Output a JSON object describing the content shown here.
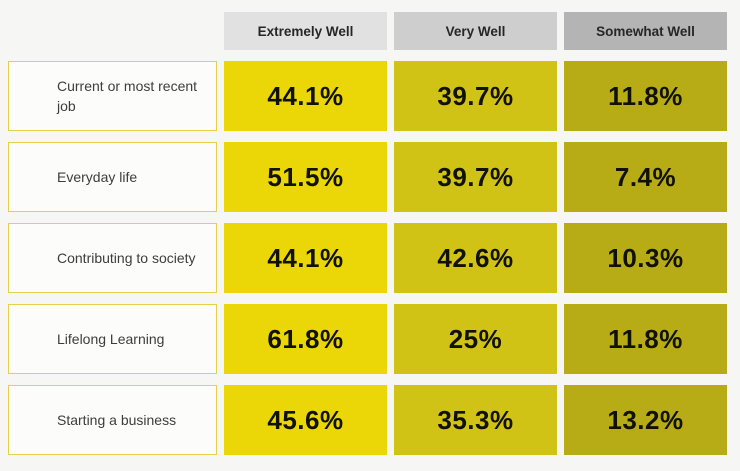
{
  "chart_data": {
    "type": "heatmap",
    "title": "",
    "columns": [
      "Extremely Well",
      "Very Well",
      "Somewhat Well"
    ],
    "column_header_colors": [
      "#e1e1e1",
      "#cecece",
      "#b4b4b4"
    ],
    "column_cell_colors": [
      "#ebd707",
      "#d1c216",
      "#b7ac15"
    ],
    "rows": [
      {
        "label": "Current or most recent job",
        "values": [
          "44.1%",
          "39.7%",
          "11.8%"
        ]
      },
      {
        "label": "Everyday life",
        "values": [
          "51.5%",
          "39.7%",
          "7.4%"
        ]
      },
      {
        "label": "Contributing to society",
        "values": [
          "44.1%",
          "42.6%",
          "10.3%"
        ]
      },
      {
        "label": "Lifelong Learning",
        "values": [
          "61.8%",
          "25%",
          "11.8%"
        ]
      },
      {
        "label": "Starting a business",
        "values": [
          "45.6%",
          "35.3%",
          "13.2%"
        ]
      }
    ],
    "values_numeric": [
      [
        44.1,
        39.7,
        11.8
      ],
      [
        51.5,
        39.7,
        7.4
      ],
      [
        44.1,
        42.6,
        10.3
      ],
      [
        61.8,
        25.0,
        11.8
      ],
      [
        45.6,
        35.3,
        13.2
      ]
    ],
    "layout": {
      "legend": false,
      "grid": false,
      "value_unit": "%"
    }
  },
  "theme": {
    "background": "#f6f6f4",
    "row_label_bg": "#fcfcfb",
    "row_label_border": "#e8cf4a",
    "header_text_color": "#262626",
    "label_text_color": "#3d3d3d",
    "value_text_color": "#111100"
  }
}
